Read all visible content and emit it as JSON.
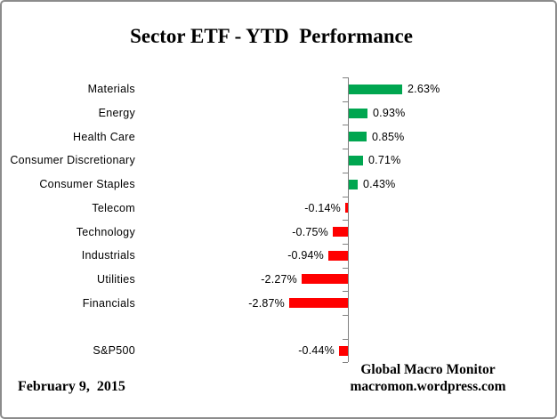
{
  "header": {
    "title": "Sector ETF - YTD  Performance"
  },
  "footer": {
    "date": "February 9,  2015",
    "brand_line1": "Global Macro Monitor",
    "brand_line2": "macromon.wordpress.com"
  },
  "chart_data": {
    "type": "bar",
    "orientation": "horizontal",
    "title": "Sector ETF - YTD  Performance",
    "categories": [
      "Materials",
      "Energy",
      "Health Care",
      "Consumer Discretionary",
      "Consumer Staples",
      "Telecom",
      "Technology",
      "Industrials",
      "Utilities",
      "Financials",
      "",
      "S&P500"
    ],
    "values": [
      2.63,
      0.93,
      0.85,
      0.71,
      0.43,
      -0.14,
      -0.75,
      -0.94,
      -2.27,
      -2.87,
      null,
      -0.44
    ],
    "value_labels": [
      "2.63%",
      "0.93%",
      "0.85%",
      "0.71%",
      "0.43%",
      "-0.14%",
      "-0.75%",
      "-0.94%",
      "-2.27%",
      "-2.87%",
      null,
      "-0.44%"
    ],
    "xlim": [
      -3.5,
      3.5
    ],
    "grid": "off",
    "legend": "none",
    "positive_color": "#00A650",
    "negative_color": "#FF0000",
    "axis_color": "#808080",
    "text_color": "#000000"
  }
}
